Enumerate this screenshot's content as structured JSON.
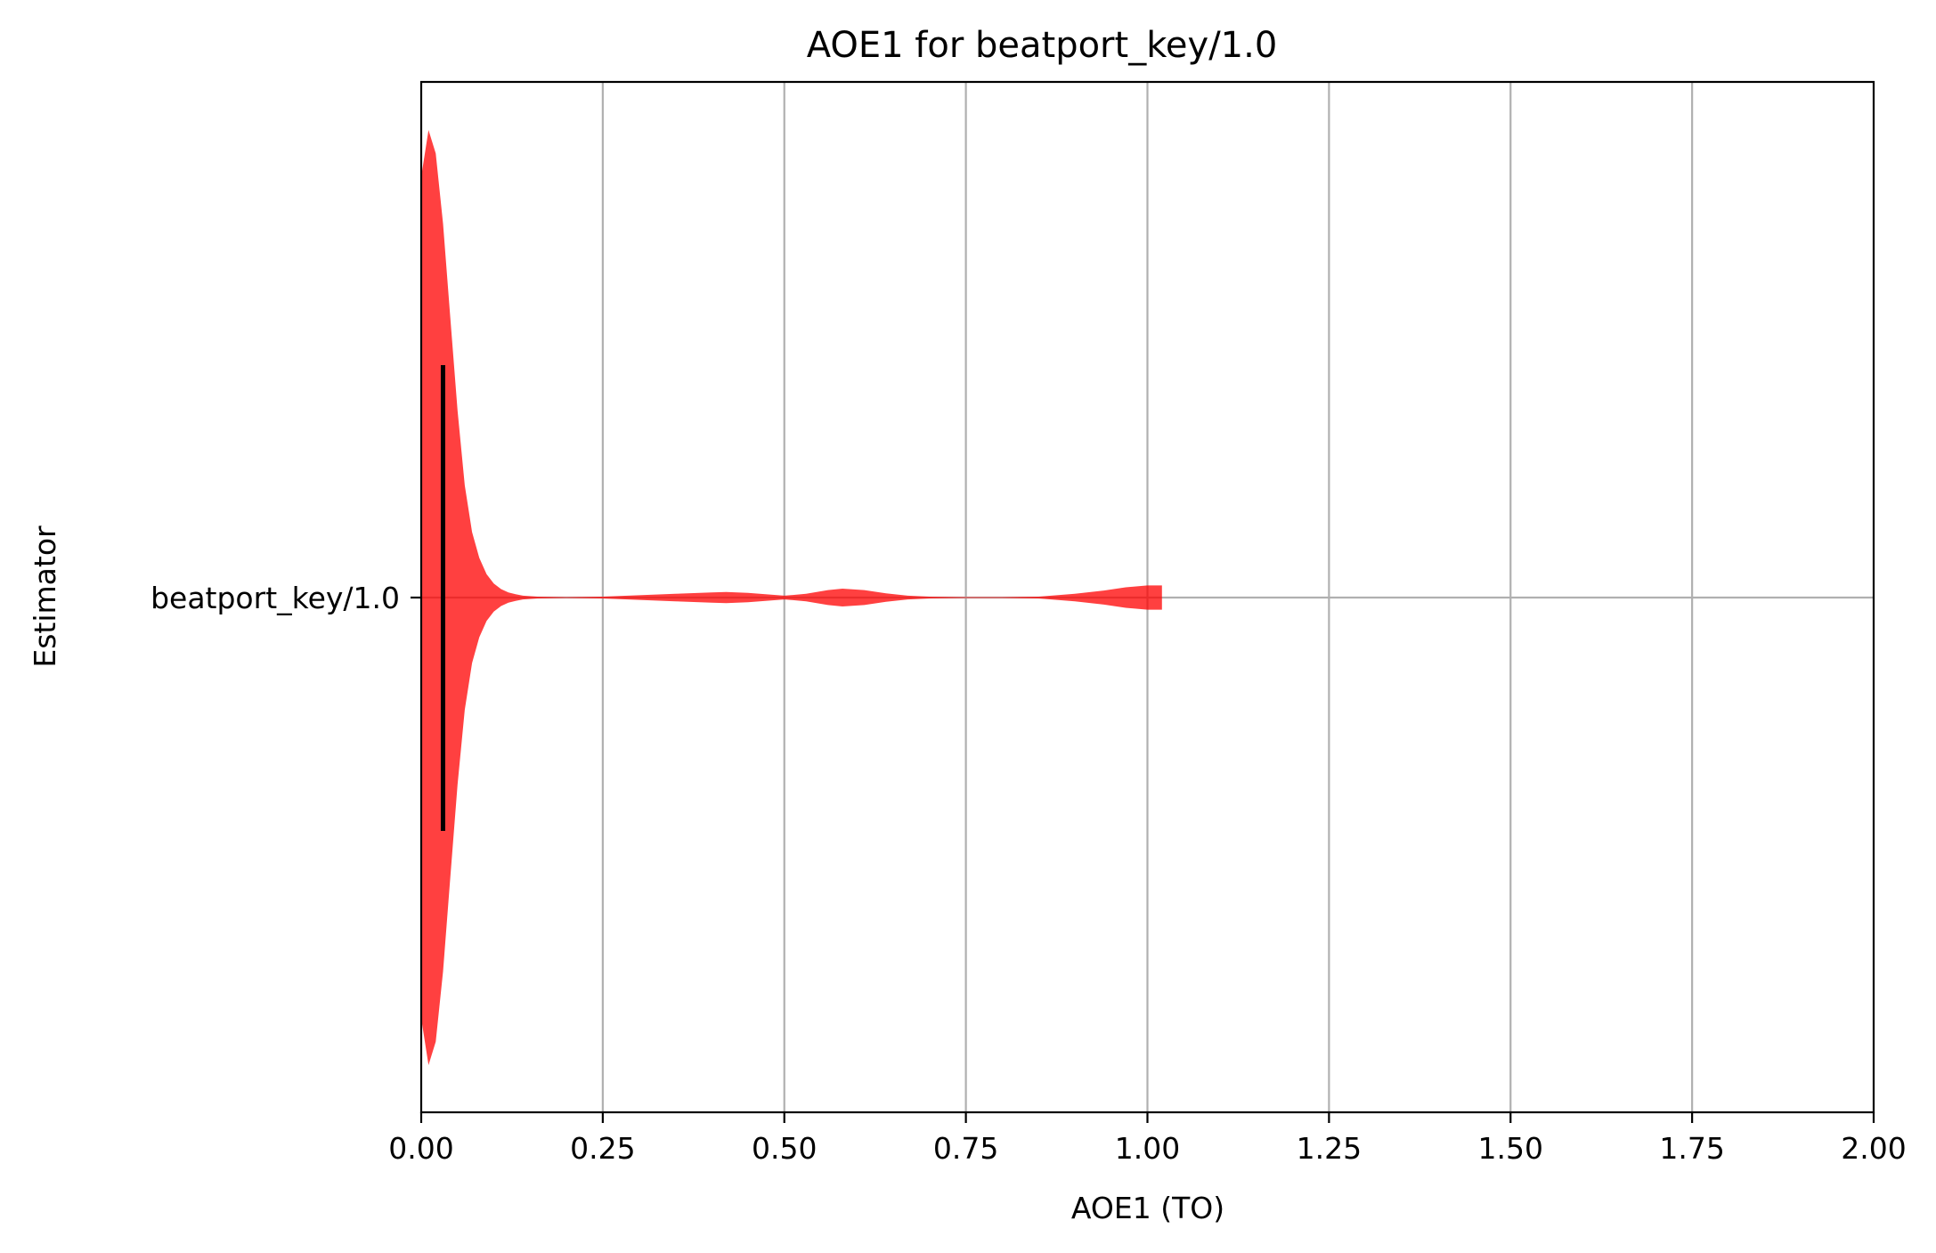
{
  "chart_data": {
    "type": "violin",
    "title": "AOE1 for beatport_key/1.0",
    "xlabel": "AOE1 (TO)",
    "ylabel": "Estimator",
    "xlim": [
      0,
      2
    ],
    "xticks": [
      "0.00",
      "0.25",
      "0.50",
      "0.75",
      "1.00",
      "1.25",
      "1.50",
      "1.75",
      "2.00"
    ],
    "categories": [
      "beatport_key/1.0"
    ],
    "grid": true,
    "orientation": "horizontal",
    "color": "#ff0000",
    "opacity": 0.75,
    "median_color": "#000000",
    "series": [
      {
        "category": "beatport_key/1.0",
        "median": 0.03,
        "min": 0.0,
        "max": 1.02,
        "density": [
          [
            0.0,
            0.9
          ],
          [
            0.01,
            1.0
          ],
          [
            0.02,
            0.95
          ],
          [
            0.03,
            0.8
          ],
          [
            0.04,
            0.6
          ],
          [
            0.05,
            0.4
          ],
          [
            0.06,
            0.24
          ],
          [
            0.07,
            0.14
          ],
          [
            0.08,
            0.085
          ],
          [
            0.09,
            0.05
          ],
          [
            0.1,
            0.03
          ],
          [
            0.11,
            0.018
          ],
          [
            0.12,
            0.011
          ],
          [
            0.13,
            0.007
          ],
          [
            0.14,
            0.004
          ],
          [
            0.16,
            0.002
          ],
          [
            0.2,
            0.001
          ],
          [
            0.25,
            0.002
          ],
          [
            0.3,
            0.005
          ],
          [
            0.35,
            0.008
          ],
          [
            0.4,
            0.011
          ],
          [
            0.42,
            0.012
          ],
          [
            0.45,
            0.01
          ],
          [
            0.5,
            0.004
          ],
          [
            0.53,
            0.008
          ],
          [
            0.56,
            0.016
          ],
          [
            0.58,
            0.019
          ],
          [
            0.61,
            0.016
          ],
          [
            0.64,
            0.009
          ],
          [
            0.67,
            0.004
          ],
          [
            0.7,
            0.002
          ],
          [
            0.75,
            0.001
          ],
          [
            0.8,
            0.001
          ],
          [
            0.85,
            0.002
          ],
          [
            0.9,
            0.008
          ],
          [
            0.94,
            0.015
          ],
          [
            0.97,
            0.022
          ],
          [
            1.0,
            0.026
          ],
          [
            1.02,
            0.026
          ]
        ]
      }
    ]
  }
}
